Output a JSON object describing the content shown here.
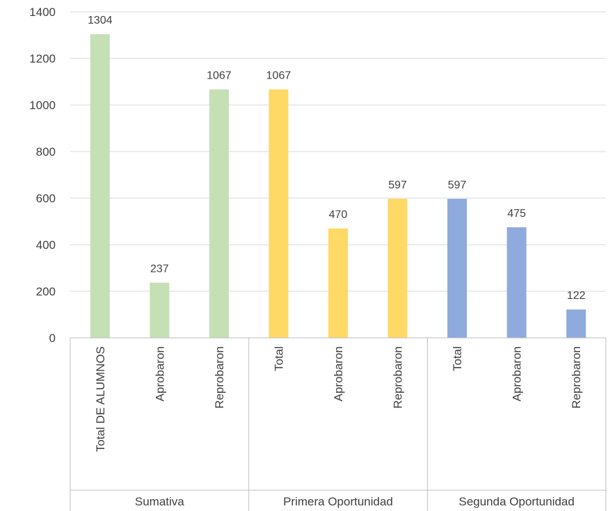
{
  "chart_data": {
    "type": "bar",
    "title": "",
    "xlabel": "",
    "ylabel": "",
    "ylim": [
      0,
      1400
    ],
    "yticks": [
      0,
      200,
      400,
      600,
      800,
      1000,
      1200,
      1400
    ],
    "ytick_labels": [
      "0",
      "200",
      "400",
      "600",
      "800",
      "1000",
      "1200",
      "1400"
    ],
    "grid": true,
    "legend": "none",
    "groups": [
      {
        "name": "Sumativa",
        "color": "#c5e0b4",
        "categories": [
          "Total DE ALUMNOS",
          "Aprobaron",
          "Reprobaron"
        ],
        "values": [
          1304,
          237,
          1067
        ],
        "labels": [
          "1304",
          "237",
          "1067"
        ]
      },
      {
        "name": "Primera Oportunidad",
        "color": "#ffd966",
        "categories": [
          "Total",
          "Aprobaron",
          "Reprobaron"
        ],
        "values": [
          1067,
          470,
          597
        ],
        "labels": [
          "1067",
          "470",
          "597"
        ]
      },
      {
        "name": "Segunda Oportunidad",
        "color": "#8faadc",
        "categories": [
          "Total",
          "Aprobaron",
          "Reprobaron"
        ],
        "values": [
          597,
          475,
          122
        ],
        "labels": [
          "597",
          "475",
          "122"
        ]
      }
    ]
  }
}
